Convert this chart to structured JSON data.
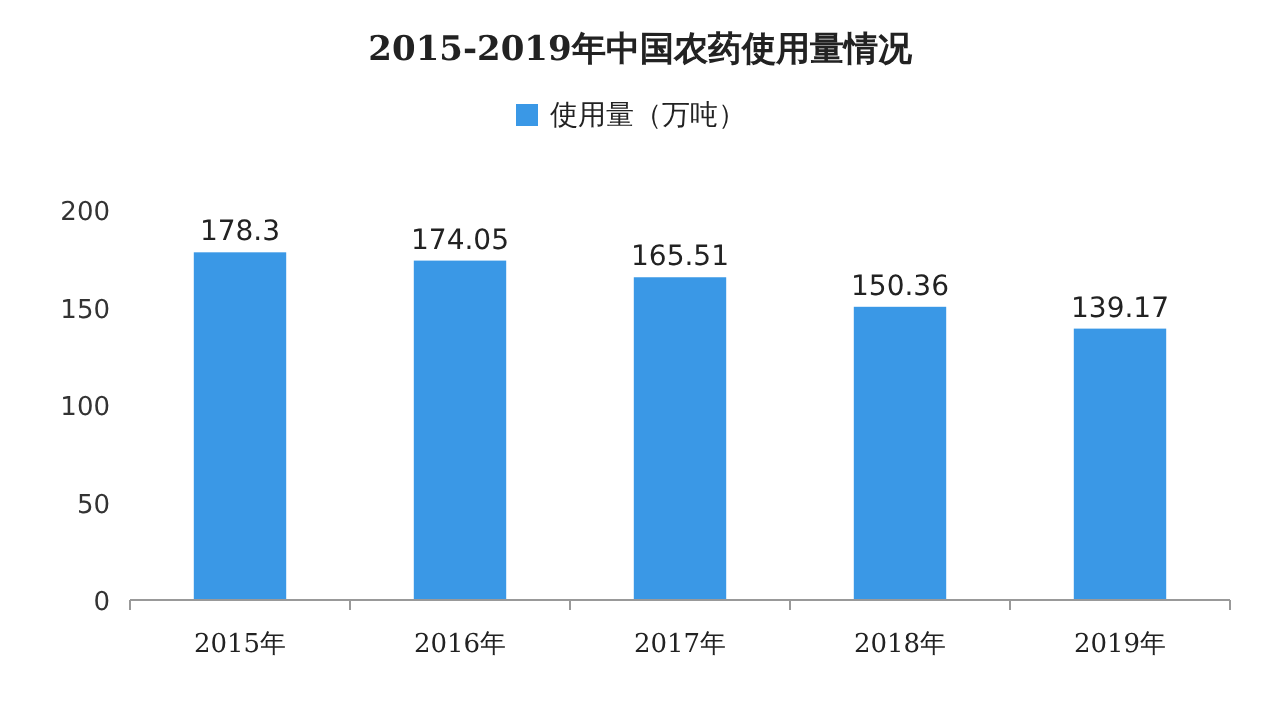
{
  "chart_data": {
    "type": "bar",
    "title": "2015-2019年中国农药使用量情况",
    "categories": [
      "2015年",
      "2016年",
      "2017年",
      "2018年",
      "2019年"
    ],
    "series": [
      {
        "name": "使用量（万吨）",
        "color": "#3a98e6",
        "values": [
          178.3,
          174.05,
          165.51,
          150.36,
          139.17
        ]
      }
    ],
    "ylim": [
      0,
      200
    ],
    "yticks": [
      0,
      50,
      100,
      150,
      200
    ],
    "data_labels": true,
    "legend": "top",
    "grid": false
  }
}
